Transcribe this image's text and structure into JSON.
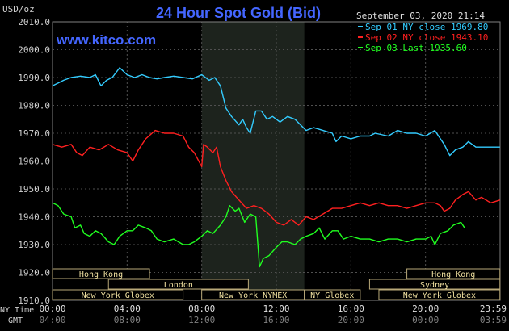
{
  "chart_data": {
    "type": "line",
    "title": "24 Hour Spot Gold (Bid)",
    "watermark": "www.kitco.com",
    "ylabel": "USD/oz",
    "ylim": [
      1910.0,
      2010.0
    ],
    "yticks": [
      "2010.0",
      "2000.0",
      "1990.0",
      "1980.0",
      "1970.0",
      "1960.0",
      "1950.0",
      "1940.0",
      "1930.0",
      "1920.0",
      "1910.0"
    ],
    "xlim": [
      0,
      24
    ],
    "xticks_ny": [
      "00:00",
      "04:00",
      "08:00",
      "12:00",
      "16:00",
      "20:00",
      "23:59"
    ],
    "xticks_gmt": [
      "04:00",
      "08:00",
      "12:00",
      "16:00",
      "20:00",
      "00:00",
      "03:59"
    ],
    "x_row_labels": {
      "ny": "NY Time",
      "gmt": "GMT"
    },
    "datetime": "September 03, 2020 21:14",
    "grid": true,
    "highlight_band": {
      "x_start": 8.0,
      "x_end": 13.5
    },
    "legend_position": "top-right",
    "legend": [
      {
        "label": "Sep 01 NY close 1969.80",
        "color": "#33ccff"
      },
      {
        "label": "Sep 02 NY close 1943.10",
        "color": "#ff2020"
      },
      {
        "label": "Sep 03 Last 1935.60",
        "color": "#20ff20"
      }
    ],
    "series": [
      {
        "name": "Sep 01",
        "color": "#33ccff",
        "points": [
          [
            0,
            1987
          ],
          [
            0.3,
            1988
          ],
          [
            0.6,
            1989
          ],
          [
            1,
            1990
          ],
          [
            1.5,
            1990.5
          ],
          [
            2,
            1990
          ],
          [
            2.3,
            1991
          ],
          [
            2.6,
            1987
          ],
          [
            2.9,
            1989
          ],
          [
            3.2,
            1990
          ],
          [
            3.6,
            1993.5
          ],
          [
            4,
            1991
          ],
          [
            4.4,
            1990
          ],
          [
            4.8,
            1991
          ],
          [
            5.2,
            1990
          ],
          [
            5.6,
            1989.5
          ],
          [
            6,
            1990
          ],
          [
            6.5,
            1990.5
          ],
          [
            7,
            1990
          ],
          [
            7.5,
            1989.5
          ],
          [
            8,
            1991
          ],
          [
            8.4,
            1989
          ],
          [
            8.7,
            1990
          ],
          [
            9,
            1987
          ],
          [
            9.3,
            1979
          ],
          [
            9.6,
            1976
          ],
          [
            10,
            1973
          ],
          [
            10.2,
            1975
          ],
          [
            10.4,
            1972
          ],
          [
            10.6,
            1970
          ],
          [
            10.9,
            1978
          ],
          [
            11.2,
            1978
          ],
          [
            11.5,
            1975
          ],
          [
            11.8,
            1976
          ],
          [
            12.2,
            1974
          ],
          [
            12.6,
            1976
          ],
          [
            13,
            1975
          ],
          [
            13.3,
            1973
          ],
          [
            13.6,
            1971
          ],
          [
            14,
            1972
          ],
          [
            14.5,
            1971
          ],
          [
            15,
            1970
          ],
          [
            15.2,
            1967
          ],
          [
            15.5,
            1969
          ],
          [
            16,
            1968
          ],
          [
            16.5,
            1969
          ],
          [
            17,
            1969
          ],
          [
            17.3,
            1970
          ],
          [
            18,
            1969
          ],
          [
            18.5,
            1971
          ],
          [
            19,
            1970
          ],
          [
            19.5,
            1970
          ],
          [
            20,
            1969
          ],
          [
            20.5,
            1971
          ],
          [
            21,
            1966
          ],
          [
            21.3,
            1962
          ],
          [
            21.6,
            1964
          ],
          [
            22,
            1965
          ],
          [
            22.3,
            1967
          ],
          [
            22.7,
            1965
          ],
          [
            23.2,
            1965
          ],
          [
            23.99,
            1965
          ]
        ]
      },
      {
        "name": "Sep 02",
        "color": "#ff2020",
        "points": [
          [
            0,
            1966
          ],
          [
            0.5,
            1965
          ],
          [
            1,
            1966
          ],
          [
            1.3,
            1963
          ],
          [
            1.6,
            1962
          ],
          [
            2,
            1965
          ],
          [
            2.5,
            1964
          ],
          [
            3,
            1966
          ],
          [
            3.5,
            1964
          ],
          [
            4,
            1963
          ],
          [
            4.3,
            1960
          ],
          [
            4.6,
            1964
          ],
          [
            5,
            1968
          ],
          [
            5.5,
            1971
          ],
          [
            6,
            1970
          ],
          [
            6.5,
            1970
          ],
          [
            7,
            1969
          ],
          [
            7.3,
            1965
          ],
          [
            7.6,
            1963
          ],
          [
            8,
            1958
          ],
          [
            8.1,
            1966
          ],
          [
            8.3,
            1965
          ],
          [
            8.6,
            1963
          ],
          [
            8.8,
            1965
          ],
          [
            9,
            1958
          ],
          [
            9.3,
            1953
          ],
          [
            9.6,
            1949
          ],
          [
            10,
            1946
          ],
          [
            10.4,
            1943
          ],
          [
            10.8,
            1944
          ],
          [
            11.2,
            1943
          ],
          [
            11.6,
            1941
          ],
          [
            12,
            1938
          ],
          [
            12.4,
            1937
          ],
          [
            12.8,
            1939
          ],
          [
            13.2,
            1937
          ],
          [
            13.6,
            1940
          ],
          [
            14,
            1939
          ],
          [
            14.5,
            1941
          ],
          [
            15,
            1943
          ],
          [
            15.5,
            1943
          ],
          [
            16,
            1944
          ],
          [
            16.5,
            1945
          ],
          [
            17,
            1944
          ],
          [
            17.5,
            1945
          ],
          [
            18,
            1944
          ],
          [
            18.5,
            1944
          ],
          [
            19,
            1943
          ],
          [
            19.5,
            1944
          ],
          [
            20,
            1945
          ],
          [
            20.5,
            1945
          ],
          [
            20.8,
            1944
          ],
          [
            21,
            1942
          ],
          [
            21.3,
            1943
          ],
          [
            21.6,
            1946
          ],
          [
            22,
            1948
          ],
          [
            22.3,
            1949
          ],
          [
            22.7,
            1946
          ],
          [
            23,
            1947
          ],
          [
            23.5,
            1945
          ],
          [
            23.99,
            1946
          ]
        ]
      },
      {
        "name": "Sep 03",
        "color": "#20ff20",
        "points": [
          [
            0,
            1945
          ],
          [
            0.3,
            1944
          ],
          [
            0.6,
            1941
          ],
          [
            1,
            1940
          ],
          [
            1.2,
            1936
          ],
          [
            1.5,
            1937
          ],
          [
            1.7,
            1934
          ],
          [
            2,
            1933
          ],
          [
            2.3,
            1935
          ],
          [
            2.6,
            1934
          ],
          [
            3,
            1931
          ],
          [
            3.3,
            1930
          ],
          [
            3.6,
            1933
          ],
          [
            4,
            1935
          ],
          [
            4.3,
            1935
          ],
          [
            4.6,
            1937
          ],
          [
            5,
            1936
          ],
          [
            5.3,
            1935
          ],
          [
            5.6,
            1932
          ],
          [
            6,
            1931
          ],
          [
            6.5,
            1932
          ],
          [
            7,
            1930
          ],
          [
            7.3,
            1930
          ],
          [
            7.6,
            1931
          ],
          [
            8,
            1933
          ],
          [
            8.3,
            1935
          ],
          [
            8.6,
            1934
          ],
          [
            9,
            1937
          ],
          [
            9.3,
            1940
          ],
          [
            9.5,
            1944
          ],
          [
            9.8,
            1942
          ],
          [
            10,
            1943
          ],
          [
            10.3,
            1938
          ],
          [
            10.6,
            1941
          ],
          [
            10.9,
            1940
          ],
          [
            11.1,
            1922
          ],
          [
            11.3,
            1925
          ],
          [
            11.6,
            1926
          ],
          [
            12,
            1929
          ],
          [
            12.3,
            1931
          ],
          [
            12.6,
            1931
          ],
          [
            13,
            1930
          ],
          [
            13.3,
            1932
          ],
          [
            13.6,
            1933
          ],
          [
            14,
            1934
          ],
          [
            14.3,
            1936
          ],
          [
            14.6,
            1932
          ],
          [
            15,
            1935
          ],
          [
            15.3,
            1935
          ],
          [
            15.6,
            1932
          ],
          [
            16,
            1933
          ],
          [
            16.5,
            1932
          ],
          [
            17,
            1932
          ],
          [
            17.5,
            1931
          ],
          [
            18,
            1932
          ],
          [
            18.5,
            1932
          ],
          [
            19,
            1931
          ],
          [
            19.5,
            1932
          ],
          [
            20,
            1932
          ],
          [
            20.3,
            1933
          ],
          [
            20.5,
            1930
          ],
          [
            20.8,
            1934
          ],
          [
            21.2,
            1935
          ],
          [
            21.5,
            1937
          ],
          [
            21.9,
            1938
          ],
          [
            22.1,
            1936
          ]
        ]
      }
    ],
    "sessions": [
      {
        "label": "Hong Kong",
        "start": 0,
        "end": 5.2,
        "row": 0
      },
      {
        "label": "Hong Kong",
        "start": 19.0,
        "end": 23.99,
        "row": 0
      },
      {
        "label": "London",
        "start": 3.0,
        "end": 10.5,
        "row": 1
      },
      {
        "label": "Sydney",
        "start": 17.0,
        "end": 23.99,
        "row": 1
      },
      {
        "label": "New York Globex",
        "start": 0,
        "end": 7.0,
        "row": 2
      },
      {
        "label": "New York NYMEX",
        "start": 8.0,
        "end": 13.5,
        "row": 2
      },
      {
        "label": "NY Globex",
        "start": 13.5,
        "end": 16.5,
        "row": 2
      },
      {
        "label": "New York Globex",
        "start": 17.5,
        "end": 23.99,
        "row": 2
      }
    ]
  }
}
